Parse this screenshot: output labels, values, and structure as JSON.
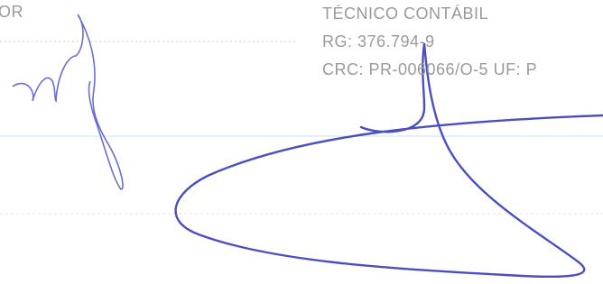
{
  "left_block": {
    "role": "OR"
  },
  "right_block": {
    "title": "TÉCNICO CONTÁBIL",
    "rg": "RG: 376.794-9",
    "crc": "CRC: PR-006066/O-5 UF: P"
  }
}
